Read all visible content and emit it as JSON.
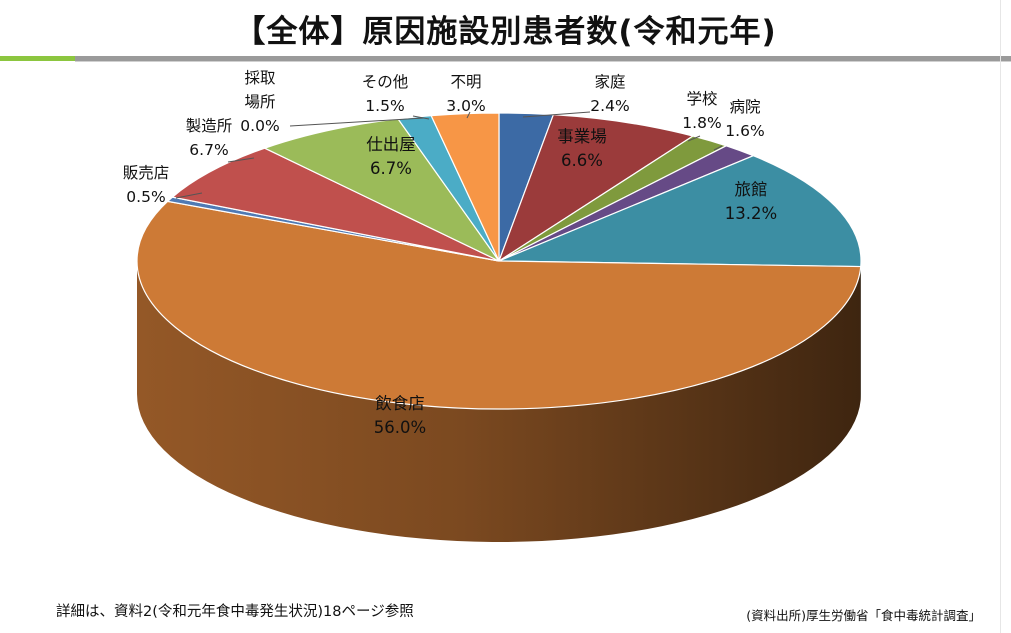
{
  "title": "【全体】原因施設別患者数(令和元年)",
  "footer_note": "詳細は、資料2(令和元年食中毒発生状況)18ページ参照",
  "footer_source": "(資料出所)厚生労働省「食中毒統計調査」",
  "chart_data": {
    "type": "pie",
    "title": "【全体】原因施設別患者数(令和元年)",
    "slices": [
      {
        "name": "家庭",
        "label_lines": [
          "家庭"
        ],
        "value_label": "2.4%",
        "value": 2.4,
        "color": "#3c6aa5"
      },
      {
        "name": "事業場",
        "label_lines": [
          "事業場"
        ],
        "value_label": "6.6%",
        "value": 6.6,
        "color": "#9b3b3b"
      },
      {
        "name": "学校",
        "label_lines": [
          "学校"
        ],
        "value_label": "1.8%",
        "value": 1.8,
        "color": "#7f9a3d"
      },
      {
        "name": "病院",
        "label_lines": [
          "病院"
        ],
        "value_label": "1.6%",
        "value": 1.6,
        "color": "#664a86"
      },
      {
        "name": "旅館",
        "label_lines": [
          "旅館"
        ],
        "value_label": "13.2%",
        "value": 13.2,
        "color": "#3c8ea3"
      },
      {
        "name": "飲食店",
        "label_lines": [
          "飲食店"
        ],
        "value_label": "56.0%",
        "value": 56.0,
        "color": "#cd7a36"
      },
      {
        "name": "販売店",
        "label_lines": [
          "販売店"
        ],
        "value_label": "0.5%",
        "value": 0.5,
        "color": "#4f7ab4"
      },
      {
        "name": "製造所",
        "label_lines": [
          "製造所"
        ],
        "value_label": "6.7%",
        "value": 6.7,
        "color": "#c0504d"
      },
      {
        "name": "採取場所",
        "label_lines": [
          "採取",
          "場所"
        ],
        "value_label": "0.0%",
        "value": 0.0,
        "color": "#9bbb59"
      },
      {
        "name": "仕出屋",
        "label_lines": [
          "仕出屋"
        ],
        "value_label": "6.7%",
        "value": 6.7,
        "color": "#9bbb59"
      },
      {
        "name": "その他",
        "label_lines": [
          "その他"
        ],
        "value_label": "1.5%",
        "value": 1.5,
        "color": "#4bacc6"
      },
      {
        "name": "不明",
        "label_lines": [
          "不明"
        ],
        "value_label": "3.0%",
        "value": 3.0,
        "color": "#f79646"
      }
    ]
  }
}
